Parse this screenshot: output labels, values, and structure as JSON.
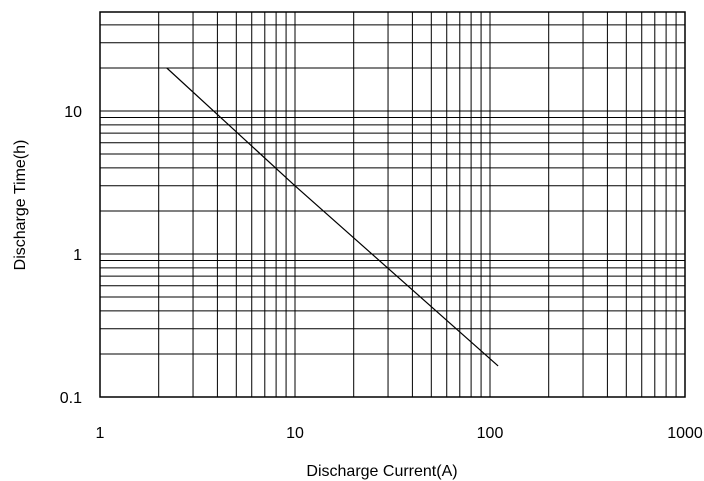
{
  "chart_data": {
    "type": "line",
    "title": "",
    "xlabel": "Discharge Current(A)",
    "ylabel": "Discharge Time(h)",
    "x_scale": "log",
    "y_scale": "log",
    "xlim": [
      1,
      1000
    ],
    "ylim": [
      0.1,
      50
    ],
    "grid": true,
    "x_ticks": [
      {
        "value": 1,
        "label": "1"
      },
      {
        "value": 10,
        "label": "10"
      },
      {
        "value": 100,
        "label": "100"
      },
      {
        "value": 1000,
        "label": "1000"
      }
    ],
    "y_ticks": [
      {
        "value": 0.1,
        "label": "0.1"
      },
      {
        "value": 1,
        "label": "1"
      },
      {
        "value": 10,
        "label": "10"
      }
    ],
    "series": [
      {
        "color": "#000000",
        "x": [
          2.2,
          10,
          110
        ],
        "y": [
          20,
          3,
          0.165
        ]
      }
    ]
  }
}
